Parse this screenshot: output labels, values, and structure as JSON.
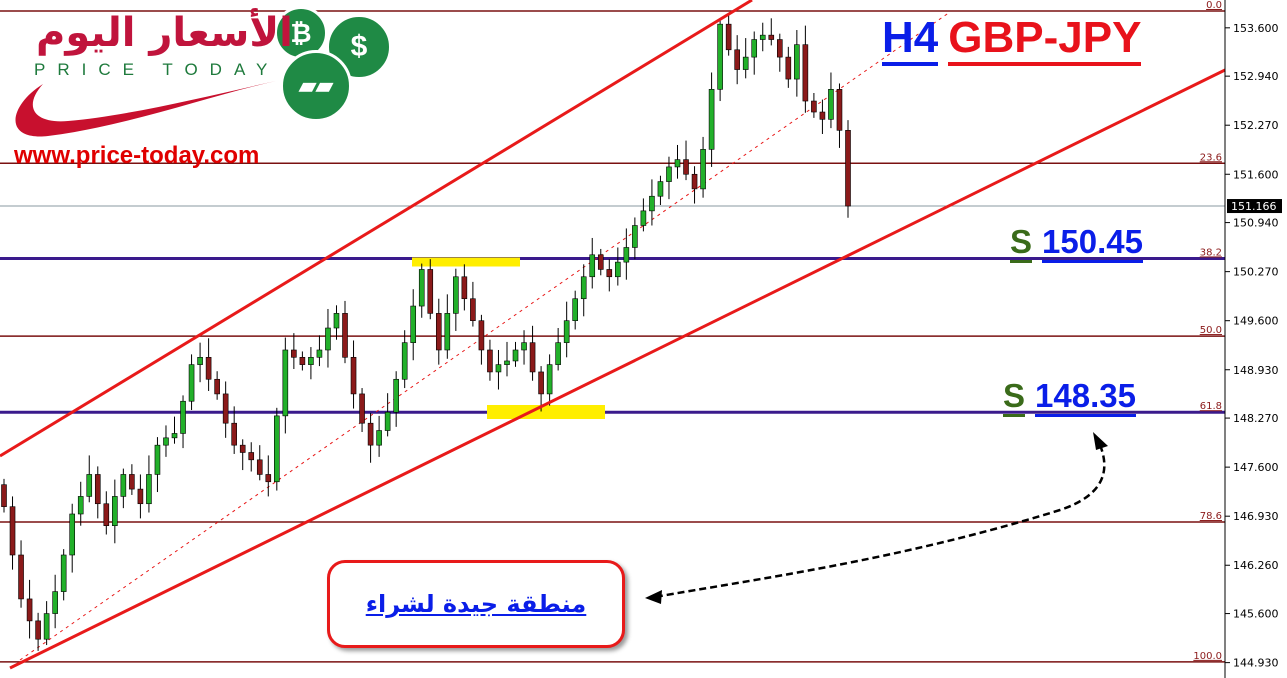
{
  "logo": {
    "arabic": "الأسعار اليوم",
    "english": "PRICE TODAY",
    "url": "www.price-today.com",
    "icons": [
      "bitcoin-icon",
      "dollar-icon",
      "gold-bars-icon"
    ]
  },
  "title": {
    "timeframe": "H4",
    "pair": "GBP-JPY"
  },
  "annotations": {
    "support1": {
      "letter": "S",
      "value": "150.45"
    },
    "support2": {
      "letter": "S",
      "value": "148.35"
    },
    "buy_zone": "منطقة جيدة لشراء"
  },
  "colors": {
    "bull": "#22b02a",
    "bear": "#8b1a1a",
    "channel": "#e81a1a",
    "fib": "#7a1010",
    "support_line": "#3a1a8c",
    "highlight": "#ffee00"
  },
  "chart_data": {
    "type": "candlestick",
    "ylim": [
      144.72,
      153.98
    ],
    "y_ticks": [
      "153.600",
      "152.940",
      "152.270",
      "151.600",
      "150.940",
      "150.270",
      "149.600",
      "148.930",
      "148.270",
      "147.600",
      "146.930",
      "146.260",
      "145.600",
      "144.930"
    ],
    "current_price": "151.166",
    "fib_levels": [
      {
        "label": "0.0",
        "price": 153.83
      },
      {
        "label": "23.6",
        "price": 151.75
      },
      {
        "label": "38.2",
        "price": 150.45
      },
      {
        "label": "50.0",
        "price": 149.39
      },
      {
        "label": "61.8",
        "price": 148.35
      },
      {
        "label": "78.6",
        "price": 146.85
      },
      {
        "label": "100.0",
        "price": 144.94
      }
    ],
    "closes": [
      147.06,
      146.4,
      145.8,
      145.5,
      145.25,
      145.6,
      145.9,
      146.4,
      146.96,
      147.2,
      147.5,
      147.1,
      146.8,
      147.2,
      147.5,
      147.3,
      147.1,
      147.5,
      147.9,
      148.0,
      148.06,
      148.5,
      149.0,
      149.1,
      148.8,
      148.6,
      148.2,
      147.9,
      147.8,
      147.7,
      147.5,
      147.4,
      148.3,
      149.2,
      149.1,
      149.0,
      149.1,
      149.2,
      149.5,
      149.7,
      149.1,
      148.6,
      148.2,
      147.9,
      148.1,
      148.35,
      148.8,
      149.3,
      149.8,
      150.3,
      149.7,
      149.2,
      149.7,
      150.2,
      149.9,
      149.6,
      149.2,
      148.9,
      149.0,
      149.05,
      149.2,
      149.3,
      148.9,
      148.6,
      149.0,
      149.3,
      149.6,
      149.9,
      150.2,
      150.5,
      150.3,
      150.2,
      150.4,
      150.6,
      150.9,
      151.1,
      151.3,
      151.5,
      151.7,
      151.8,
      151.6,
      151.4,
      151.94,
      152.76,
      153.65,
      153.3,
      153.03,
      153.2,
      153.44,
      153.5,
      153.44,
      153.2,
      152.9,
      153.37,
      152.6,
      152.45,
      152.35,
      152.76,
      152.2,
      151.166
    ]
  }
}
